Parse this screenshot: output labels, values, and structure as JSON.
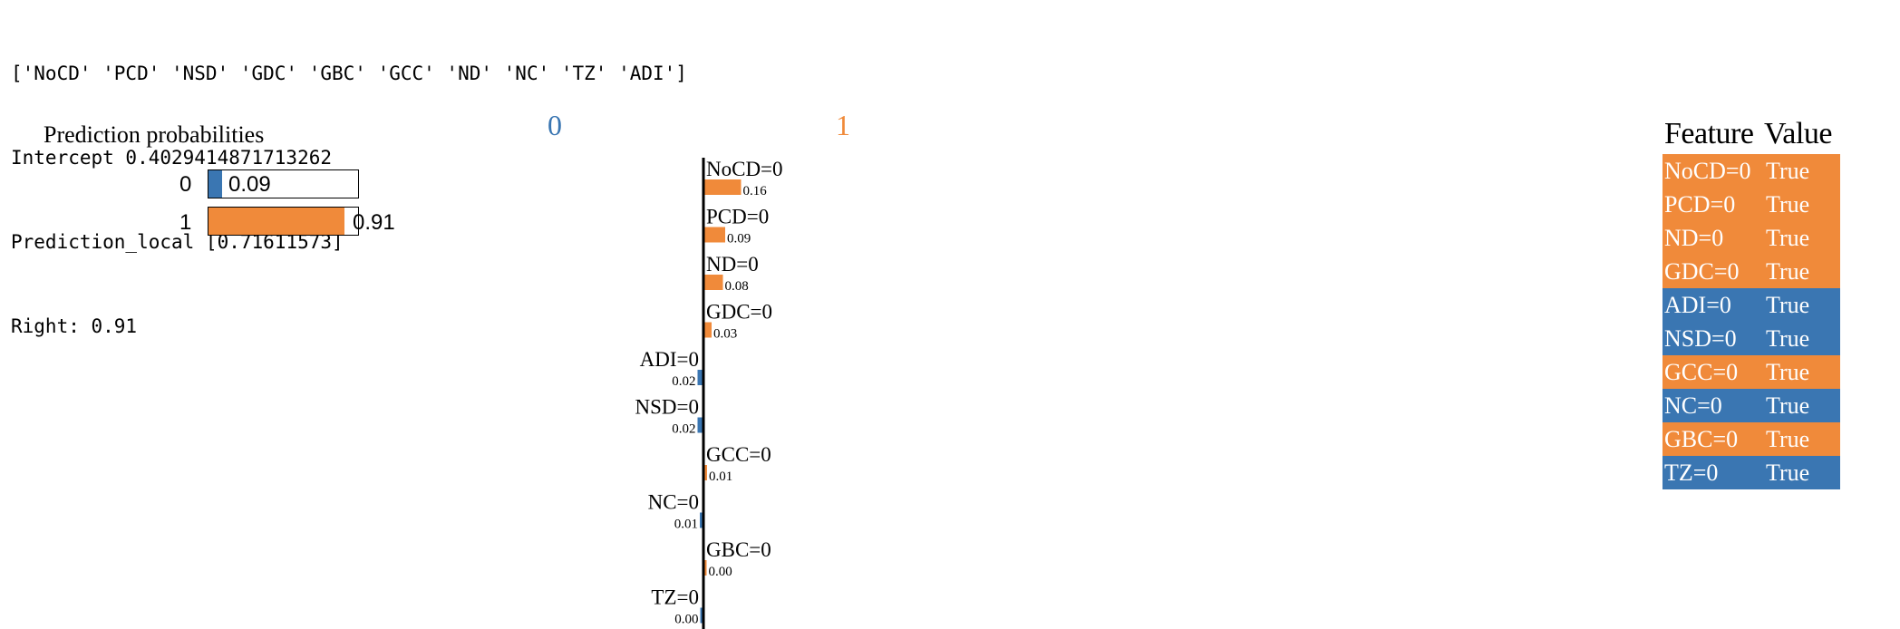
{
  "console": {
    "lines": [
      "['NoCD' 'PCD' 'NSD' 'GDC' 'GBC' 'GCC' 'ND' 'NC' 'TZ' 'ADI']",
      "Intercept 0.4029414871713262",
      "Prediction_local [0.71611573]",
      "Right: 0.91"
    ]
  },
  "colors": {
    "class0": "#3a76b2",
    "class1": "#f08a3a"
  },
  "prediction_probabilities": {
    "title": "Prediction probabilities",
    "rows": [
      {
        "label": "0",
        "value": 0.09,
        "value_text": "0.09",
        "color": "#3a76b2"
      },
      {
        "label": "1",
        "value": 0.91,
        "value_text": "0.91",
        "color": "#f08a3a"
      }
    ]
  },
  "class_headers": {
    "left": "0",
    "right": "1"
  },
  "chart_data": [
    {
      "type": "bar",
      "title": "Prediction probabilities",
      "categories": [
        "0",
        "1"
      ],
      "values": [
        0.09,
        0.91
      ],
      "xlim": [
        0,
        1
      ]
    },
    {
      "type": "bar",
      "orientation": "horizontal",
      "categories": [
        "NoCD=0",
        "PCD=0",
        "ND=0",
        "GDC=0",
        "ADI=0",
        "NSD=0",
        "GCC=0",
        "NC=0",
        "GBC=0",
        "TZ=0"
      ],
      "values": [
        0.16,
        0.09,
        0.08,
        0.03,
        -0.02,
        -0.02,
        0.01,
        -0.01,
        0.002,
        -0.002
      ],
      "value_labels": [
        "0.16",
        "0.09",
        "0.08",
        "0.03",
        "0.02",
        "0.02",
        "0.01",
        "0.01",
        "0.00",
        "0.00"
      ],
      "sides": [
        1,
        1,
        1,
        1,
        0,
        0,
        1,
        0,
        1,
        0
      ]
    }
  ],
  "feature_table": {
    "headers": [
      "Feature",
      "Value"
    ],
    "rows": [
      {
        "feature": "NoCD=0",
        "value": "True",
        "class": 1
      },
      {
        "feature": "PCD=0",
        "value": "True",
        "class": 1
      },
      {
        "feature": "ND=0",
        "value": "True",
        "class": 1
      },
      {
        "feature": "GDC=0",
        "value": "True",
        "class": 1
      },
      {
        "feature": "ADI=0",
        "value": "True",
        "class": 0
      },
      {
        "feature": "NSD=0",
        "value": "True",
        "class": 0
      },
      {
        "feature": "GCC=0",
        "value": "True",
        "class": 1
      },
      {
        "feature": "NC=0",
        "value": "True",
        "class": 0
      },
      {
        "feature": "GBC=0",
        "value": "True",
        "class": 1
      },
      {
        "feature": "TZ=0",
        "value": "True",
        "class": 0
      }
    ]
  }
}
